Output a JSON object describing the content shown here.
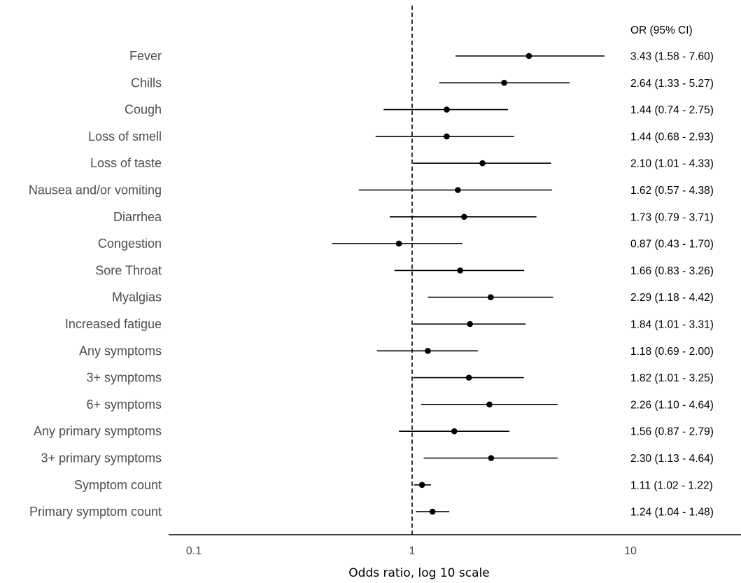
{
  "chart_data": {
    "type": "scatter",
    "subtype": "forest-plot",
    "xlabel": "Odds ratio, log 10 scale",
    "x_scale": "log10",
    "xlim": [
      0.1,
      20
    ],
    "x_ticks": [
      {
        "value": 0.1,
        "label": "0.1"
      },
      {
        "value": 1,
        "label": "1"
      },
      {
        "value": 10,
        "label": "10"
      }
    ],
    "reference_line": 1,
    "or_column_header": "OR (95% CI)",
    "grid": false,
    "rows": [
      {
        "label": "Fever",
        "or": 3.43,
        "lo": 1.58,
        "hi": 7.6,
        "text": "3.43 (1.58 - 7.60)"
      },
      {
        "label": "Chills",
        "or": 2.64,
        "lo": 1.33,
        "hi": 5.27,
        "text": "2.64 (1.33 - 5.27)"
      },
      {
        "label": "Cough",
        "or": 1.44,
        "lo": 0.74,
        "hi": 2.75,
        "text": "1.44 (0.74 - 2.75)"
      },
      {
        "label": "Loss of smell",
        "or": 1.44,
        "lo": 0.68,
        "hi": 2.93,
        "text": "1.44 (0.68 - 2.93)"
      },
      {
        "label": "Loss of taste",
        "or": 2.1,
        "lo": 1.01,
        "hi": 4.33,
        "text": "2.10 (1.01 - 4.33)"
      },
      {
        "label": "Nausea and/or vomiting",
        "or": 1.62,
        "lo": 0.57,
        "hi": 4.38,
        "text": "1.62 (0.57 - 4.38)"
      },
      {
        "label": "Diarrhea",
        "or": 1.73,
        "lo": 0.79,
        "hi": 3.71,
        "text": "1.73 (0.79 - 3.71)"
      },
      {
        "label": "Congestion",
        "or": 0.87,
        "lo": 0.43,
        "hi": 1.7,
        "text": "0.87 (0.43 - 1.70)"
      },
      {
        "label": "Sore Throat",
        "or": 1.66,
        "lo": 0.83,
        "hi": 3.26,
        "text": "1.66 (0.83 - 3.26)"
      },
      {
        "label": "Myalgias",
        "or": 2.29,
        "lo": 1.18,
        "hi": 4.42,
        "text": "2.29 (1.18 - 4.42)"
      },
      {
        "label": "Increased fatigue",
        "or": 1.84,
        "lo": 1.01,
        "hi": 3.31,
        "text": "1.84 (1.01 - 3.31)"
      },
      {
        "label": "Any symptoms",
        "or": 1.18,
        "lo": 0.69,
        "hi": 2.0,
        "text": "1.18 (0.69 - 2.00)"
      },
      {
        "label": "3+ symptoms",
        "or": 1.82,
        "lo": 1.01,
        "hi": 3.25,
        "text": "1.82 (1.01 - 3.25)"
      },
      {
        "label": "6+ symptoms",
        "or": 2.26,
        "lo": 1.1,
        "hi": 4.64,
        "text": "2.26 (1.10 - 4.64)"
      },
      {
        "label": "Any primary symptoms",
        "or": 1.56,
        "lo": 0.87,
        "hi": 2.79,
        "text": "1.56 (0.87 - 2.79)"
      },
      {
        "label": "3+ primary symptoms",
        "or": 2.3,
        "lo": 1.13,
        "hi": 4.64,
        "text": "2.30 (1.13 - 4.64)"
      },
      {
        "label": "Symptom count",
        "or": 1.11,
        "lo": 1.02,
        "hi": 1.22,
        "text": "1.11 (1.02 - 1.22)"
      },
      {
        "label": "Primary symptom count",
        "or": 1.24,
        "lo": 1.04,
        "hi": 1.48,
        "text": "1.24 (1.04 - 1.48)"
      }
    ],
    "colors": {
      "point": "#000000",
      "ci_line": "#000000",
      "reference_line": "#333333",
      "axis": "#000000",
      "row_label": "#4d4d4d",
      "tick_label": "#4d4d4d"
    }
  }
}
